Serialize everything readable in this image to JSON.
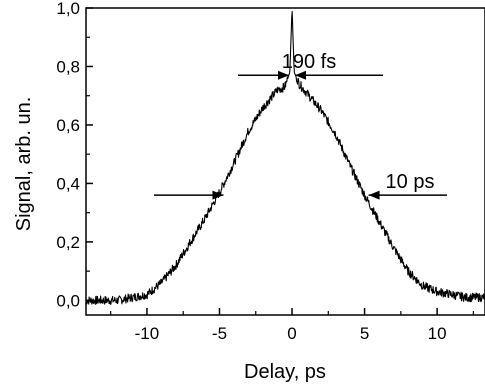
{
  "chart_data": {
    "type": "line",
    "xlabel": "Delay, ps",
    "ylabel": "Signal, arb. un.",
    "xlim": [
      -14.2,
      13.3
    ],
    "ylim": [
      -0.05,
      1.0
    ],
    "x_ticks": [
      -10,
      -5,
      0,
      5,
      10
    ],
    "x_tick_labels": [
      "-10",
      "-5",
      "0",
      "5",
      "10"
    ],
    "y_ticks": [
      0.0,
      0.2,
      0.4,
      0.6,
      0.8,
      1.0
    ],
    "y_tick_labels": [
      "0,0",
      "0,2",
      "0,4",
      "0,6",
      "0,8",
      "1,0"
    ],
    "grid": false,
    "series": [
      {
        "x": [
          -14,
          -13,
          -12,
          -11,
          -10,
          -9,
          -8,
          -7,
          -6,
          -5,
          -4,
          -3,
          -2,
          -1,
          -0.5,
          -0.15,
          0,
          0.15,
          0.5,
          1,
          2,
          3,
          4,
          5,
          6,
          7,
          8,
          9,
          10,
          11,
          12,
          13
        ],
        "y": [
          0.0,
          0.0,
          0.0,
          0.01,
          0.02,
          0.06,
          0.12,
          0.2,
          0.28,
          0.37,
          0.47,
          0.58,
          0.66,
          0.72,
          0.73,
          0.78,
          1.0,
          0.78,
          0.74,
          0.71,
          0.65,
          0.57,
          0.46,
          0.36,
          0.27,
          0.18,
          0.1,
          0.05,
          0.03,
          0.02,
          0.01,
          0.01
        ]
      }
    ],
    "annotations": [
      {
        "text": "190 fs",
        "x": 0,
        "y": 0.77
      },
      {
        "text": "10 ps",
        "x": 5,
        "y": 0.36
      }
    ]
  }
}
